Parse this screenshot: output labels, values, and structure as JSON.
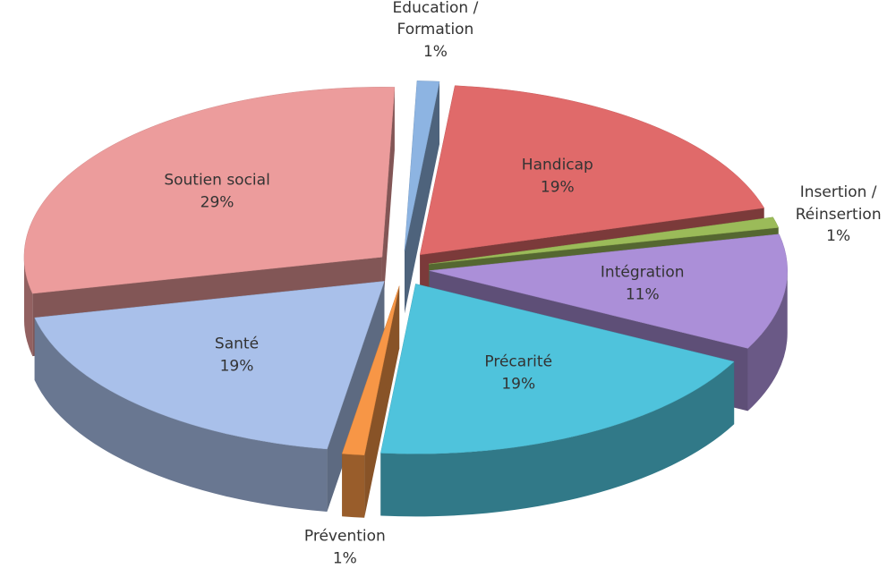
{
  "chart_data": {
    "type": "pie",
    "categories": [
      "Education / Formation",
      "Handicap",
      "Insertion / Réinsertion",
      "Intégration",
      "Précarité",
      "Prévention",
      "Santé",
      "Soutien social"
    ],
    "values": [
      1,
      19,
      1,
      11,
      19,
      1,
      19,
      29
    ],
    "value_labels": [
      "1%",
      "19%",
      "1%",
      "11%",
      "19%",
      "1%",
      "19%",
      "29%"
    ],
    "colors": [
      "#8db4e2",
      "#e06a6a",
      "#9bbb59",
      "#ab8fd8",
      "#4fc3dc",
      "#f79646",
      "#a9c0ea",
      "#ec9c9c"
    ]
  }
}
